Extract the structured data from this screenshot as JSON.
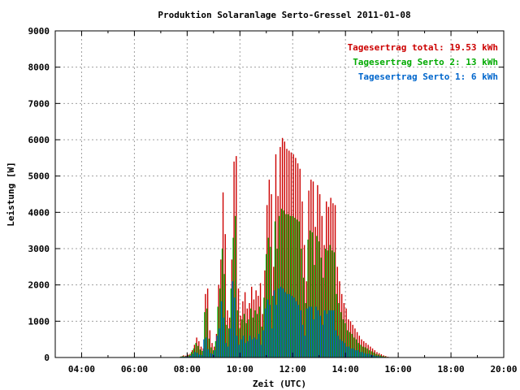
{
  "chart_data": {
    "type": "bar",
    "title": "Produktion Solaranlage Serto-Gressel 2011-01-08",
    "xlabel": "Zeit (UTC)",
    "ylabel": "Leistung [W]",
    "x_range_hours": [
      3,
      20
    ],
    "ylim": [
      0,
      9000
    ],
    "x_tick_hours": [
      4,
      6,
      8,
      10,
      12,
      14,
      16,
      18,
      20
    ],
    "x_tick_labels": [
      "04:00",
      "06:00",
      "08:00",
      "10:00",
      "12:00",
      "14:00",
      "16:00",
      "18:00",
      "20:00"
    ],
    "y_ticks": [
      0,
      1000,
      2000,
      3000,
      4000,
      5000,
      6000,
      7000,
      8000,
      9000
    ],
    "y_tick_labels": [
      "0",
      "1000",
      "2000",
      "3000",
      "4000",
      "5000",
      "6000",
      "7000",
      "8000",
      "9000"
    ],
    "grid": true,
    "legend_placement": "top-right",
    "legend": [
      {
        "key": "total",
        "label": "Tagesertrag total: 19.53 kWh",
        "color": "#cc0000"
      },
      {
        "key": "serto2",
        "label": "Tagesertrag Serto 2: 13 kWh",
        "color": "#00aa00"
      },
      {
        "key": "serto1",
        "label": "Tagesertrag Serto 1: 6 kWh",
        "color": "#0066cc"
      }
    ],
    "colors": {
      "total": "#cc0000",
      "serto2": "#00aa00",
      "serto1": "#0066cc"
    },
    "x_time": [
      "07:45",
      "07:50",
      "07:55",
      "08:00",
      "08:05",
      "08:10",
      "08:15",
      "08:20",
      "08:25",
      "08:30",
      "08:35",
      "08:40",
      "08:45",
      "08:50",
      "08:55",
      "09:00",
      "09:05",
      "09:10",
      "09:15",
      "09:20",
      "09:25",
      "09:30",
      "09:35",
      "09:40",
      "09:45",
      "09:50",
      "09:55",
      "10:00",
      "10:05",
      "10:10",
      "10:15",
      "10:20",
      "10:25",
      "10:30",
      "10:35",
      "10:40",
      "10:45",
      "10:50",
      "10:55",
      "11:00",
      "11:05",
      "11:10",
      "11:15",
      "11:20",
      "11:25",
      "11:30",
      "11:35",
      "11:40",
      "11:45",
      "11:50",
      "11:55",
      "12:00",
      "12:05",
      "12:10",
      "12:15",
      "12:20",
      "12:25",
      "12:30",
      "12:35",
      "12:40",
      "12:45",
      "12:50",
      "12:55",
      "13:00",
      "13:05",
      "13:10",
      "13:15",
      "13:20",
      "13:25",
      "13:30",
      "13:35",
      "13:40",
      "13:45",
      "13:50",
      "13:55",
      "14:00",
      "14:05",
      "14:10",
      "14:15",
      "14:20",
      "14:25",
      "14:30",
      "14:35",
      "14:40",
      "14:45",
      "14:50",
      "14:55",
      "15:00",
      "15:05",
      "15:10",
      "15:15",
      "15:20",
      "15:25",
      "15:30",
      "15:35"
    ],
    "series": [
      {
        "key": "total",
        "name": "Tagesertrag total: 19.53 kWh",
        "values": [
          30,
          60,
          50,
          80,
          100,
          200,
          350,
          550,
          450,
          300,
          250,
          1750,
          1900,
          750,
          400,
          300,
          650,
          2000,
          2700,
          4550,
          3400,
          1300,
          1100,
          2700,
          5400,
          5550,
          1900,
          1150,
          1550,
          1800,
          1350,
          1500,
          1950,
          1600,
          1850,
          1700,
          2050,
          1200,
          2400,
          4200,
          4900,
          4500,
          2500,
          5600,
          4450,
          5800,
          6050,
          5950,
          5750,
          5700,
          5650,
          5600,
          5500,
          5350,
          5200,
          4300,
          3100,
          2100,
          4600,
          4900,
          4850,
          3600,
          4750,
          4500,
          3900,
          3100,
          4300,
          4150,
          4400,
          4250,
          4200,
          2500,
          2100,
          1750,
          1500,
          1350,
          1050,
          1000,
          900,
          800,
          700,
          600,
          500,
          450,
          400,
          350,
          300,
          250,
          200,
          150,
          120,
          90,
          60,
          40,
          20
        ]
      },
      {
        "key": "serto2",
        "name": "Tagesertrag Serto 2: 13 kWh",
        "values": [
          20,
          40,
          30,
          50,
          70,
          150,
          250,
          400,
          320,
          220,
          180,
          1250,
          1350,
          520,
          280,
          200,
          450,
          1400,
          1900,
          3000,
          2300,
          900,
          800,
          1900,
          3300,
          3900,
          1300,
          800,
          1050,
          1200,
          950,
          1050,
          1350,
          1100,
          1300,
          1200,
          1400,
          850,
          1650,
          2850,
          3300,
          3050,
          1700,
          3750,
          3000,
          3900,
          4100,
          4050,
          3950,
          3950,
          3900,
          3900,
          3850,
          3800,
          3750,
          3000,
          2200,
          1500,
          3250,
          3500,
          3450,
          2550,
          3350,
          3200,
          2750,
          2200,
          3000,
          2950,
          3100,
          2950,
          2900,
          1750,
          1500,
          1250,
          1050,
          950,
          750,
          700,
          650,
          550,
          500,
          400,
          350,
          300,
          280,
          250,
          200,
          170,
          140,
          100,
          80,
          60,
          40,
          30,
          15
        ]
      },
      {
        "key": "serto1",
        "name": "Tagesertrag Serto 1: 6 kWh",
        "values": [
          10,
          20,
          20,
          30,
          30,
          50,
          100,
          150,
          130,
          80,
          70,
          500,
          550,
          230,
          120,
          100,
          200,
          600,
          800,
          1550,
          1100,
          400,
          300,
          800,
          2100,
          1650,
          600,
          350,
          500,
          600,
          400,
          450,
          600,
          500,
          550,
          500,
          650,
          350,
          750,
          1350,
          1600,
          1450,
          800,
          1850,
          1450,
          1900,
          1950,
          1900,
          1800,
          1750,
          1750,
          1700,
          1650,
          1550,
          1450,
          1300,
          900,
          600,
          1350,
          1400,
          1400,
          1050,
          1400,
          1300,
          1150,
          900,
          1300,
          1200,
          1300,
          1300,
          1300,
          750,
          600,
          500,
          450,
          400,
          300,
          300,
          250,
          250,
          200,
          200,
          150,
          150,
          120,
          100,
          100,
          80,
          60,
          50,
          40,
          30,
          20,
          10,
          5
        ]
      }
    ]
  }
}
